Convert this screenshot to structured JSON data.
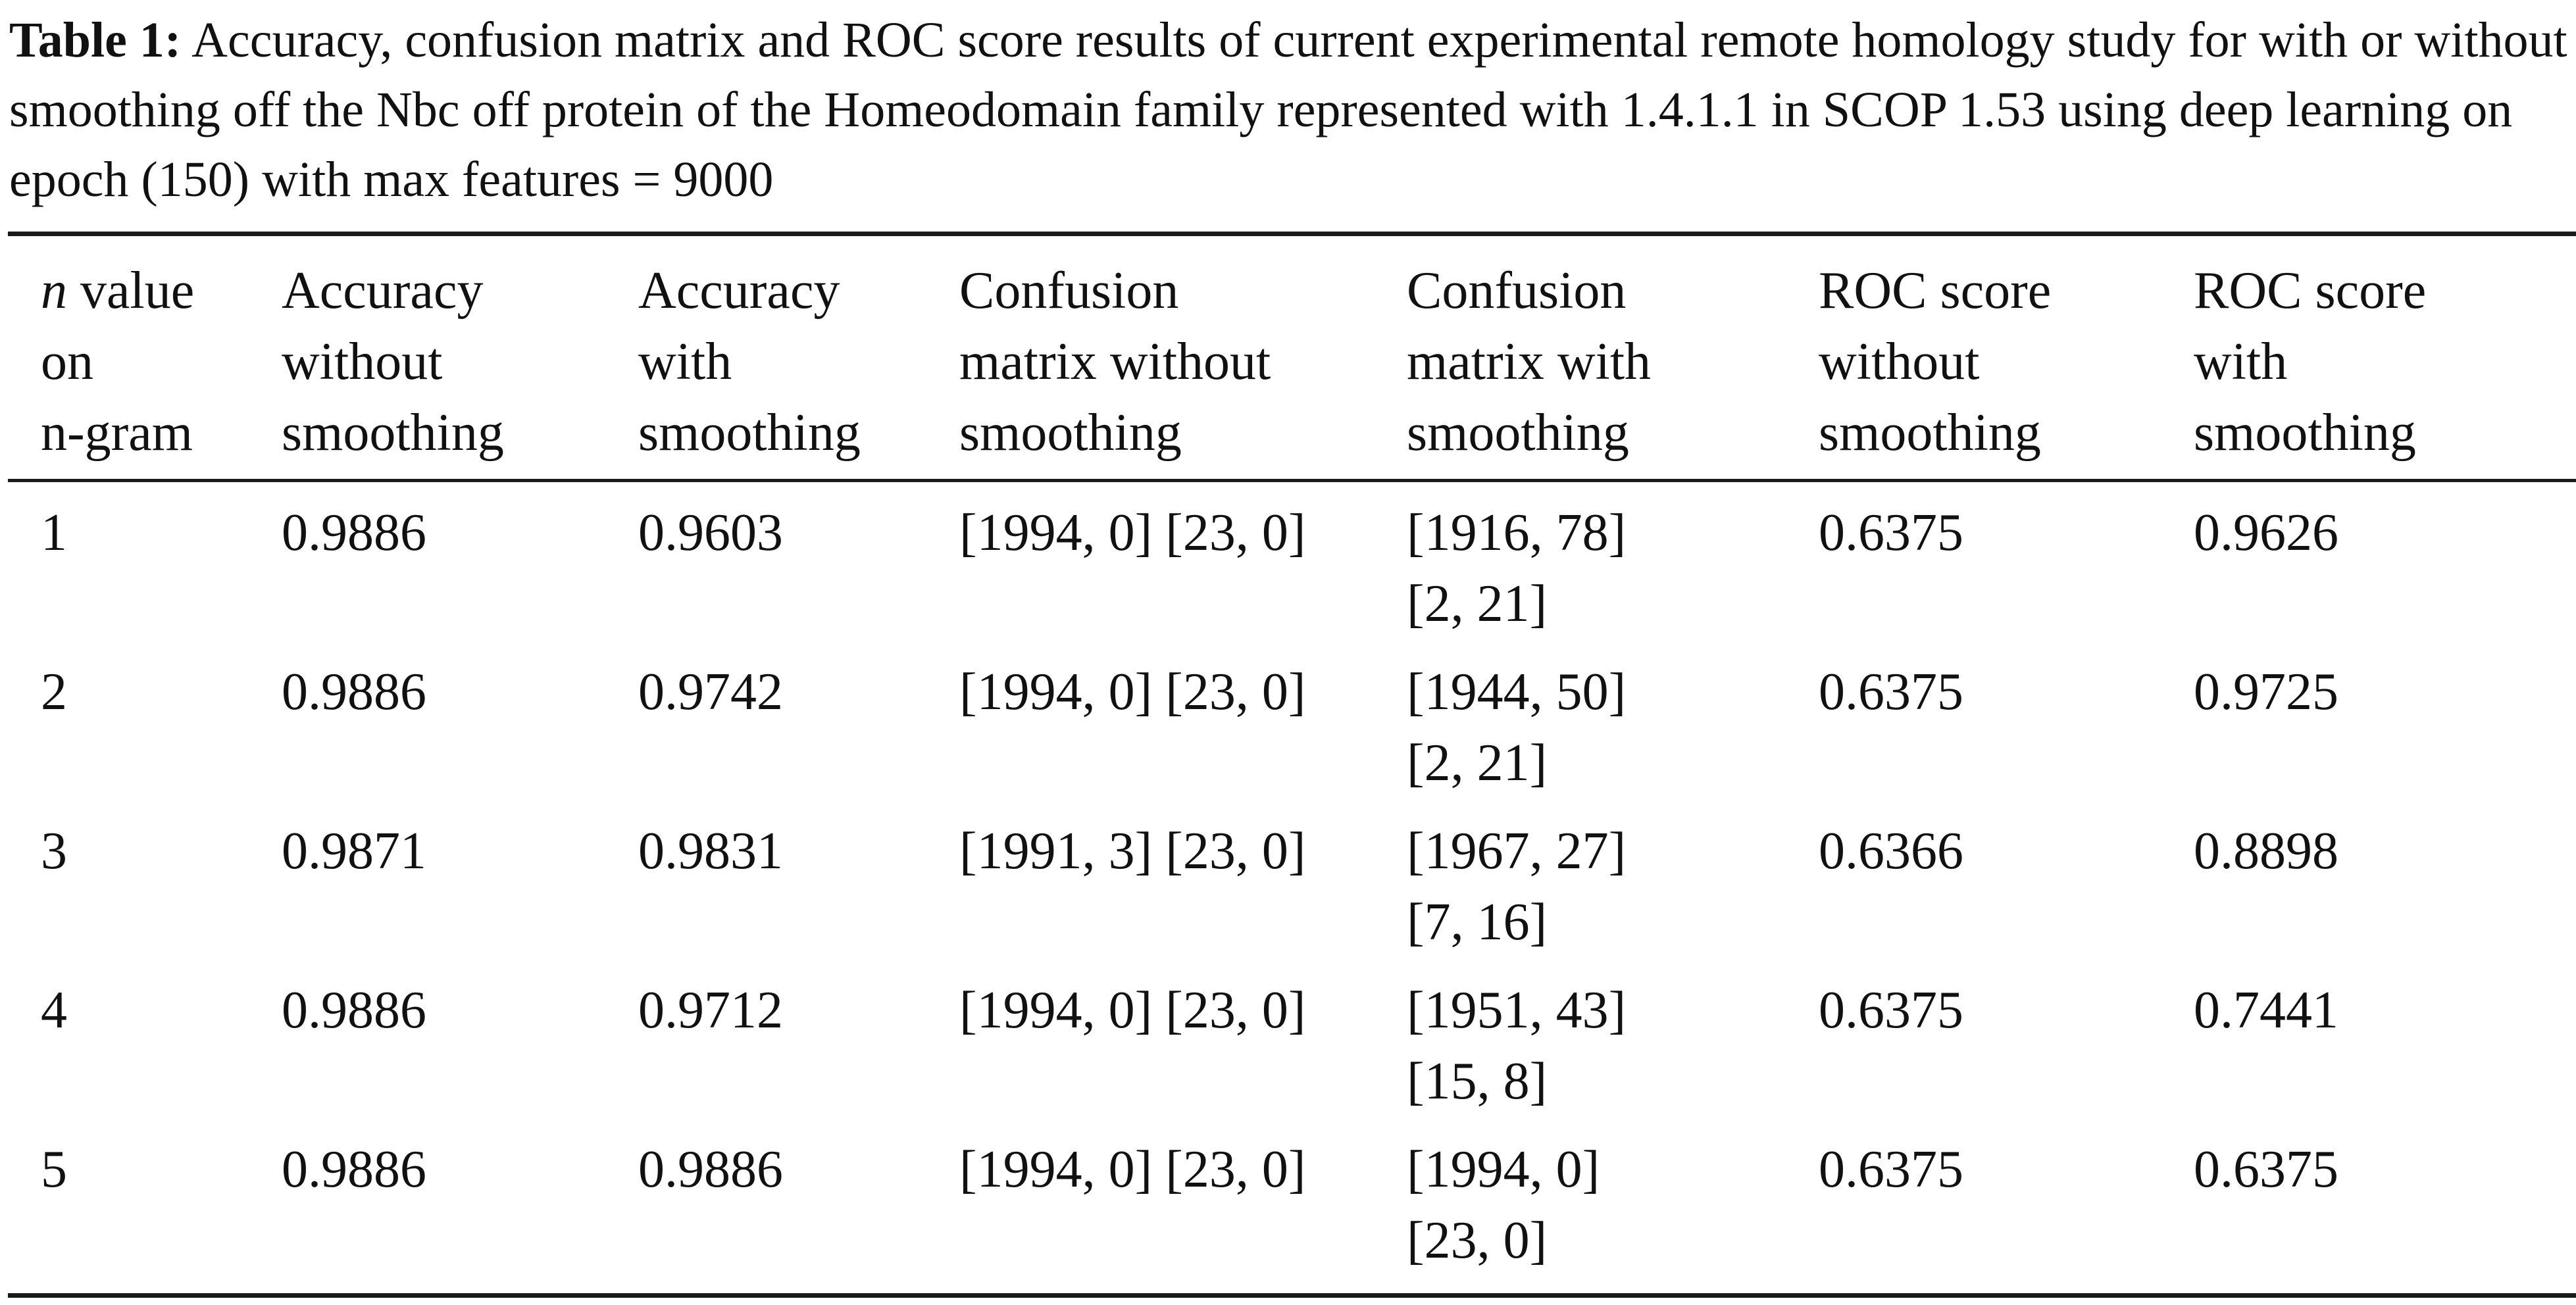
{
  "caption": {
    "label": "Table 1:",
    "text": "Accuracy, confusion matrix and ROC score results of current experimental remote homology study for with or without smoothing off the Nbc off protein of the Homeodomain family represented with 1.4.1.1 in SCOP 1.53 using deep learning on epoch (150) with max features = 9000"
  },
  "table": {
    "headers": [
      {
        "italic": "n",
        "line1": " value",
        "line2": "on",
        "line3": "n-gram"
      },
      {
        "line1": "Accuracy",
        "line2": "without",
        "line3": "smoothing"
      },
      {
        "line1": "Accuracy",
        "line2": "with",
        "line3": "smoothing"
      },
      {
        "line1": "Confusion",
        "line2": "matrix without",
        "line3": "smoothing"
      },
      {
        "line1": "Confusion",
        "line2": "matrix with",
        "line3": "smoothing"
      },
      {
        "line1": "ROC score",
        "line2": "without",
        "line3": "smoothing"
      },
      {
        "line1": "ROC score",
        "line2": "with",
        "line3": "smoothing"
      }
    ],
    "rows": [
      {
        "n": "1",
        "acc_without": "0.9886",
        "acc_with": "0.9603",
        "cm_without": "[1994, 0] [23, 0]",
        "cm_with_1": "[1916, 78]",
        "cm_with_2": "[2, 21]",
        "roc_without": "0.6375",
        "roc_with": "0.9626"
      },
      {
        "n": "2",
        "acc_without": "0.9886",
        "acc_with": "0.9742",
        "cm_without": "[1994, 0] [23, 0]",
        "cm_with_1": "[1944, 50]",
        "cm_with_2": "[2, 21]",
        "roc_without": "0.6375",
        "roc_with": "0.9725"
      },
      {
        "n": "3",
        "acc_without": "0.9871",
        "acc_with": "0.9831",
        "cm_without": "[1991, 3] [23, 0]",
        "cm_with_1": "[1967, 27]",
        "cm_with_2": "[7, 16]",
        "roc_without": "0.6366",
        "roc_with": "0.8898"
      },
      {
        "n": "4",
        "acc_without": "0.9886",
        "acc_with": "0.9712",
        "cm_without": "[1994, 0] [23, 0]",
        "cm_with_1": "[1951, 43]",
        "cm_with_2": "[15, 8]",
        "roc_without": "0.6375",
        "roc_with": "0.7441"
      },
      {
        "n": "5",
        "acc_without": "0.9886",
        "acc_with": "0.9886",
        "cm_without": "[1994, 0] [23, 0]",
        "cm_with_1": "[1994, 0]",
        "cm_with_2": "[23, 0]",
        "roc_without": "0.6375",
        "roc_with": "0.6375"
      }
    ]
  }
}
